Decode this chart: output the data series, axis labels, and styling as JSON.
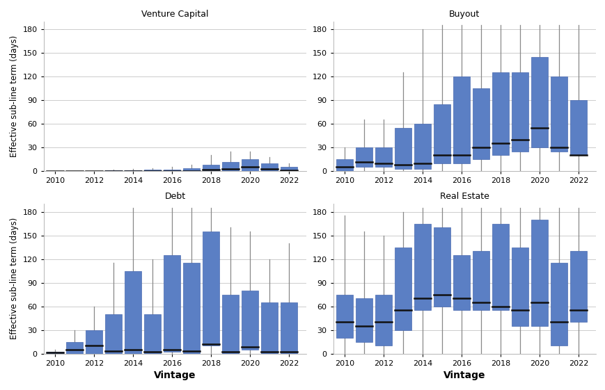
{
  "ylabel": "Effective sub-line term (days)",
  "xlabel": "Vintage",
  "bar_color": "#5b7fc4",
  "bar_edge_color": "#4a6ab0",
  "whisker_color": "#888888",
  "median_color": "#111111",
  "background_color": "#ffffff",
  "plot_bg_color": "#ffffff",
  "grid_color": "#cccccc",
  "subplots": [
    {
      "title": "Venture Capital",
      "vintages": [
        2010,
        2011,
        2012,
        2013,
        2014,
        2015,
        2016,
        2017,
        2018,
        2019,
        2020,
        2021,
        2022
      ],
      "q25": [
        0,
        0,
        0,
        0,
        0,
        0,
        0,
        0,
        0,
        0,
        0,
        0,
        0
      ],
      "q50": [
        0,
        0,
        0,
        0,
        0,
        0,
        0,
        0,
        2,
        3,
        5,
        3,
        1
      ],
      "q75": [
        0,
        0,
        0,
        1,
        1,
        2,
        2,
        4,
        8,
        12,
        15,
        10,
        5
      ],
      "whisker_low": [
        0,
        0,
        0,
        0,
        0,
        0,
        0,
        0,
        0,
        0,
        0,
        0,
        0
      ],
      "whisker_high": [
        0,
        0,
        0,
        2,
        3,
        4,
        5,
        8,
        20,
        25,
        25,
        18,
        10
      ]
    },
    {
      "title": "Buyout",
      "vintages": [
        2010,
        2011,
        2012,
        2013,
        2014,
        2015,
        2016,
        2017,
        2018,
        2019,
        2020,
        2021,
        2022
      ],
      "q25": [
        0,
        5,
        5,
        3,
        3,
        10,
        10,
        15,
        20,
        25,
        30,
        25,
        20
      ],
      "q50": [
        5,
        12,
        10,
        8,
        10,
        20,
        20,
        30,
        35,
        40,
        55,
        30,
        20
      ],
      "q75": [
        15,
        30,
        30,
        55,
        60,
        85,
        120,
        105,
        125,
        125,
        145,
        120,
        90
      ],
      "whisker_low": [
        0,
        0,
        0,
        0,
        0,
        0,
        0,
        0,
        0,
        0,
        0,
        0,
        0
      ],
      "whisker_high": [
        30,
        65,
        65,
        125,
        180,
        185,
        185,
        185,
        185,
        185,
        185,
        185,
        185
      ]
    },
    {
      "title": "Debt",
      "vintages": [
        2010,
        2011,
        2012,
        2013,
        2014,
        2015,
        2016,
        2017,
        2018,
        2019,
        2020,
        2021,
        2022
      ],
      "q25": [
        0,
        0,
        0,
        0,
        0,
        0,
        2,
        0,
        10,
        0,
        5,
        0,
        0
      ],
      "q50": [
        1,
        5,
        10,
        3,
        5,
        2,
        5,
        3,
        12,
        2,
        8,
        2,
        2
      ],
      "q75": [
        2,
        15,
        30,
        50,
        105,
        50,
        125,
        115,
        155,
        75,
        80,
        65,
        65
      ],
      "whisker_low": [
        0,
        0,
        0,
        0,
        0,
        0,
        0,
        0,
        0,
        0,
        0,
        0,
        0
      ],
      "whisker_high": [
        5,
        30,
        60,
        115,
        185,
        120,
        185,
        185,
        185,
        160,
        155,
        120,
        140
      ]
    },
    {
      "title": "Real Estate",
      "vintages": [
        2010,
        2011,
        2012,
        2013,
        2014,
        2015,
        2016,
        2017,
        2018,
        2019,
        2020,
        2021,
        2022
      ],
      "q25": [
        20,
        15,
        10,
        30,
        55,
        60,
        55,
        55,
        55,
        35,
        35,
        10,
        40
      ],
      "q50": [
        40,
        35,
        40,
        55,
        70,
        75,
        70,
        65,
        60,
        55,
        65,
        40,
        55
      ],
      "q75": [
        75,
        70,
        75,
        135,
        165,
        160,
        125,
        130,
        165,
        135,
        170,
        115,
        130
      ],
      "whisker_low": [
        0,
        0,
        0,
        0,
        0,
        0,
        0,
        0,
        0,
        0,
        0,
        0,
        0
      ],
      "whisker_high": [
        175,
        155,
        150,
        180,
        185,
        185,
        185,
        185,
        185,
        185,
        185,
        185,
        185
      ]
    }
  ],
  "ylim": [
    0,
    190
  ],
  "yticks": [
    0,
    30,
    60,
    90,
    120,
    150,
    180
  ],
  "xticks": [
    2010,
    2012,
    2014,
    2016,
    2018,
    2020,
    2022
  ]
}
